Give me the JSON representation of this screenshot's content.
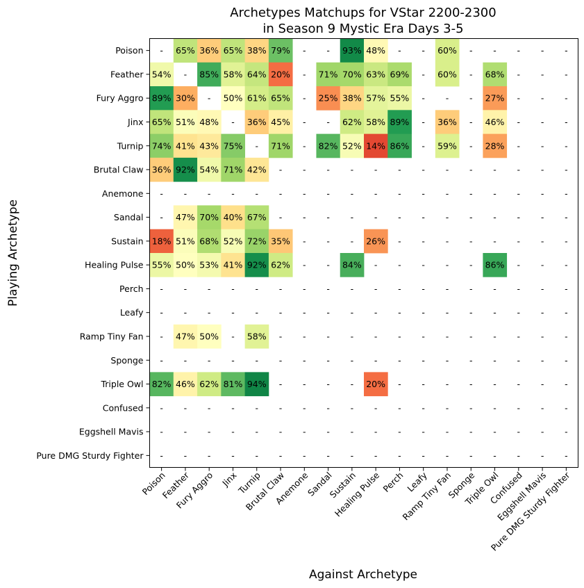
{
  "chart_data": {
    "type": "heatmap",
    "title": [
      "Archetypes Matchups for VStar 2200-2300",
      "in Season 9 Mystic Era Days 3-5"
    ],
    "xlabel": "Against Archetype",
    "ylabel": "Playing Archetype",
    "value_unit": "%",
    "empty_label": "-",
    "categories": [
      "Poison",
      "Feather",
      "Fury Aggro",
      "Jinx",
      "Turnip",
      "Brutal Claw",
      "Anemone",
      "Sandal",
      "Sustain",
      "Healing Pulse",
      "Perch",
      "Leafy",
      "Ramp Tiny Fan",
      "Sponge",
      "Triple Owl",
      "Confused",
      "Eggshell Mavis",
      "Pure DMG Sturdy Fighter"
    ],
    "colormap": "RdYlGn",
    "value_range": [
      0,
      100
    ],
    "colormap_stops": [
      "#a50026",
      "#d73027",
      "#f46d43",
      "#fdae61",
      "#fee08b",
      "#ffffbf",
      "#d9ef8b",
      "#a6d96a",
      "#66bd63",
      "#1a9850",
      "#006837"
    ],
    "values": [
      [
        null,
        65,
        36,
        65,
        38,
        79,
        null,
        null,
        93,
        48,
        null,
        null,
        60,
        null,
        null,
        null,
        null,
        null
      ],
      [
        54,
        null,
        85,
        58,
        64,
        20,
        null,
        71,
        70,
        63,
        69,
        null,
        60,
        null,
        68,
        null,
        null,
        null
      ],
      [
        89,
        30,
        null,
        50,
        61,
        65,
        null,
        25,
        38,
        57,
        55,
        null,
        null,
        null,
        27,
        null,
        null,
        null
      ],
      [
        65,
        51,
        48,
        null,
        36,
        45,
        null,
        null,
        62,
        58,
        89,
        null,
        36,
        null,
        46,
        null,
        null,
        null
      ],
      [
        74,
        41,
        43,
        75,
        null,
        71,
        null,
        82,
        52,
        14,
        86,
        null,
        59,
        null,
        28,
        null,
        null,
        null
      ],
      [
        36,
        92,
        54,
        71,
        42,
        null,
        null,
        null,
        null,
        null,
        null,
        null,
        null,
        null,
        null,
        null,
        null,
        null
      ],
      [
        null,
        null,
        null,
        null,
        null,
        null,
        null,
        null,
        null,
        null,
        null,
        null,
        null,
        null,
        null,
        null,
        null,
        null
      ],
      [
        null,
        47,
        70,
        40,
        67,
        null,
        null,
        null,
        null,
        null,
        null,
        null,
        null,
        null,
        null,
        null,
        null,
        null
      ],
      [
        18,
        51,
        68,
        52,
        72,
        35,
        null,
        null,
        null,
        26,
        null,
        null,
        null,
        null,
        null,
        null,
        null,
        null
      ],
      [
        55,
        50,
        53,
        41,
        92,
        62,
        null,
        null,
        84,
        null,
        null,
        null,
        null,
        null,
        86,
        null,
        null,
        null
      ],
      [
        null,
        null,
        null,
        null,
        null,
        null,
        null,
        null,
        null,
        null,
        null,
        null,
        null,
        null,
        null,
        null,
        null,
        null
      ],
      [
        null,
        null,
        null,
        null,
        null,
        null,
        null,
        null,
        null,
        null,
        null,
        null,
        null,
        null,
        null,
        null,
        null,
        null
      ],
      [
        null,
        47,
        50,
        null,
        58,
        null,
        null,
        null,
        null,
        null,
        null,
        null,
        null,
        null,
        null,
        null,
        null,
        null
      ],
      [
        null,
        null,
        null,
        null,
        null,
        null,
        null,
        null,
        null,
        null,
        null,
        null,
        null,
        null,
        null,
        null,
        null,
        null
      ],
      [
        82,
        46,
        62,
        81,
        94,
        null,
        null,
        null,
        null,
        20,
        null,
        null,
        null,
        null,
        null,
        null,
        null,
        null
      ],
      [
        null,
        null,
        null,
        null,
        null,
        null,
        null,
        null,
        null,
        null,
        null,
        null,
        null,
        null,
        null,
        null,
        null,
        null
      ],
      [
        null,
        null,
        null,
        null,
        null,
        null,
        null,
        null,
        null,
        null,
        null,
        null,
        null,
        null,
        null,
        null,
        null,
        null
      ],
      [
        null,
        null,
        null,
        null,
        null,
        null,
        null,
        null,
        null,
        null,
        null,
        null,
        null,
        null,
        null,
        null,
        null,
        null
      ]
    ]
  }
}
